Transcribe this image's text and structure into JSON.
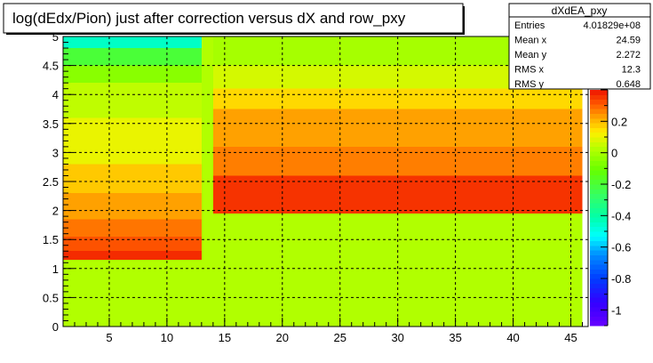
{
  "chart_data": {
    "type": "heatmap",
    "title": "log(dEdx/Pion) just after correction versus dX and row_pxy",
    "xlabel": "",
    "ylabel": "",
    "xlim": [
      1,
      46.5
    ],
    "ylim": [
      0,
      5
    ],
    "x_ticks": [
      5,
      10,
      15,
      20,
      25,
      30,
      35,
      40,
      45
    ],
    "y_ticks": [
      0,
      0.5,
      1,
      1.5,
      2,
      2.5,
      3,
      3.5,
      4,
      4.5,
      5
    ],
    "grid": true,
    "stats_box": {
      "name": "dXdEA_pxy",
      "rows": [
        {
          "label": "Entries",
          "value": "4.01829e+08"
        },
        {
          "label": "Mean x",
          "value": "24.59"
        },
        {
          "label": "Mean y",
          "value": "2.272"
        },
        {
          "label": "RMS x",
          "value": "12.3"
        },
        {
          "label": "RMS y",
          "value": "0.648"
        }
      ]
    },
    "colorbar": {
      "range": [
        -1.1,
        0.4
      ],
      "ticks": [
        -1,
        -0.8,
        -0.6,
        -0.4,
        -0.2,
        0,
        0.2
      ],
      "tick_labels": [
        "-1",
        "-0.8",
        "-0.6",
        "-0.4",
        "-0.2",
        "0",
        "0.2"
      ]
    },
    "regions": [
      {
        "x": [
          1,
          46
        ],
        "y": [
          0,
          1.15
        ],
        "value": 0.02
      },
      {
        "x": [
          1,
          13
        ],
        "y": [
          1.15,
          1.3
        ],
        "value": 0.37
      },
      {
        "x": [
          1,
          13
        ],
        "y": [
          1.3,
          1.55
        ],
        "value": 0.32
      },
      {
        "x": [
          1,
          13
        ],
        "y": [
          1.55,
          1.85
        ],
        "value": 0.28
      },
      {
        "x": [
          1,
          13
        ],
        "y": [
          1.85,
          2.3
        ],
        "value": 0.23
      },
      {
        "x": [
          1,
          13
        ],
        "y": [
          2.3,
          2.8
        ],
        "value": 0.18
      },
      {
        "x": [
          1,
          13
        ],
        "y": [
          2.8,
          3.6
        ],
        "value": 0.1
      },
      {
        "x": [
          1,
          13
        ],
        "y": [
          3.6,
          4.2
        ],
        "value": 0.04
      },
      {
        "x": [
          1,
          13
        ],
        "y": [
          4.2,
          4.5
        ],
        "value": -0.05
      },
      {
        "x": [
          1,
          13
        ],
        "y": [
          4.5,
          4.8
        ],
        "value": -0.2
      },
      {
        "x": [
          1,
          13
        ],
        "y": [
          4.8,
          5
        ],
        "value": -0.45
      },
      {
        "x": [
          13,
          14
        ],
        "y": [
          1.15,
          5
        ],
        "value": 0.02
      },
      {
        "x": [
          14,
          46
        ],
        "y": [
          1.15,
          1.95
        ],
        "value": 0.02
      },
      {
        "x": [
          14,
          46
        ],
        "y": [
          1.95,
          2.6
        ],
        "value": 0.36
      },
      {
        "x": [
          14,
          46
        ],
        "y": [
          2.6,
          3.1
        ],
        "value": 0.27
      },
      {
        "x": [
          14,
          46
        ],
        "y": [
          3.1,
          3.75
        ],
        "value": 0.23
      },
      {
        "x": [
          14,
          46
        ],
        "y": [
          3.75,
          4.1
        ],
        "value": 0.16
      },
      {
        "x": [
          14,
          46
        ],
        "y": [
          4.1,
          4.5
        ],
        "value": 0.07
      },
      {
        "x": [
          14,
          46
        ],
        "y": [
          4.5,
          5
        ],
        "value": 0.0
      }
    ]
  }
}
